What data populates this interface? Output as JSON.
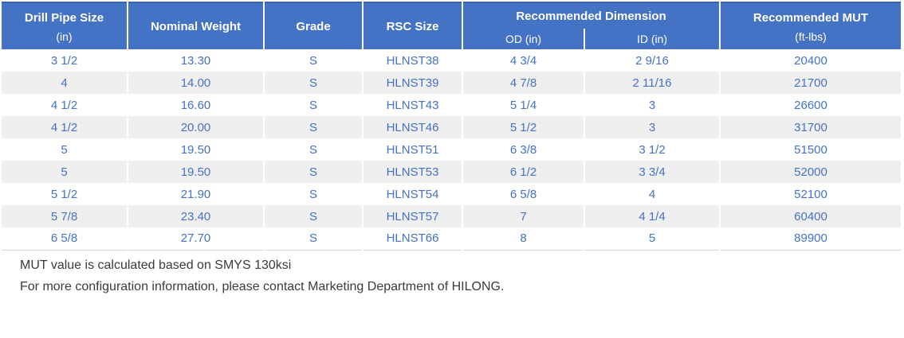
{
  "table": {
    "header": {
      "drill_pipe_size": {
        "label": "Drill Pipe Size",
        "unit": "(in)"
      },
      "nominal_weight": "Nominal Weight",
      "grade": "Grade",
      "rsc_size": "RSC Size",
      "recommended_dimension": {
        "label": "Recommended Dimension",
        "od": "OD (in)",
        "id": "ID (in)"
      },
      "recommended_mut": {
        "label": "Recommended MUT",
        "unit": "(ft-lbs)"
      }
    },
    "rows": [
      [
        "3 1/2",
        "13.30",
        "S",
        "HLNST38",
        "4 3/4",
        "2 9/16",
        "20400"
      ],
      [
        "4",
        "14.00",
        "S",
        "HLNST39",
        "4 7/8",
        "2 11/16",
        "21700"
      ],
      [
        "4 1/2",
        "16.60",
        "S",
        "HLNST43",
        "5 1/4",
        "3",
        "26600"
      ],
      [
        "4 1/2",
        "20.00",
        "S",
        "HLNST46",
        "5 1/2",
        "3",
        "31700"
      ],
      [
        "5",
        "19.50",
        "S",
        "HLNST51",
        "6 3/8",
        "3 1/2",
        "51500"
      ],
      [
        "5",
        "19.50",
        "S",
        "HLNST53",
        "6 1/2",
        "3 3/4",
        "52000"
      ],
      [
        "5 1/2",
        "21.90",
        "S",
        "HLNST54",
        "6 5/8",
        "4",
        "52100"
      ],
      [
        "5 7/8",
        "23.40",
        "S",
        "HLNST57",
        "7",
        "4 1/4",
        "60400"
      ],
      [
        "6 5/8",
        "27.70",
        "S",
        "HLNST66",
        "8",
        "5",
        "89900"
      ]
    ]
  },
  "notes": {
    "line1": "MUT value is calculated based on SMYS 130ksi",
    "line2": "For more configuration information, please contact Marketing Department of HILONG."
  },
  "colors": {
    "header_bg": "#4472C4",
    "header_text": "#FFFFFF",
    "header_top_border": "#3A62AE",
    "row_alt_bg": "#EFEFEF",
    "data_text": "#4472C4",
    "note_text": "#3B3B3B"
  }
}
